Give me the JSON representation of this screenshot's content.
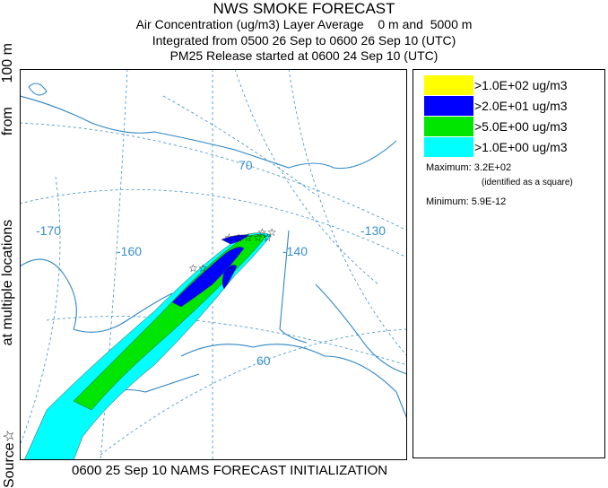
{
  "title": {
    "main": "NWS SMOKE FORECAST",
    "line2": "Air Concentration (ug/m3) Layer Average    0 m and  5000 m",
    "line3": "Integrated from 0500 26 Sep to 0600 26 Sep 10 (UTC)",
    "line4": "PM25 Release started at 0600 24 Sep 10 (UTC)"
  },
  "side_label": {
    "part1": "Source",
    "star": "☆",
    "part2": "at multiple locations",
    "part3": "from",
    "part4": "100 m"
  },
  "map": {
    "lon_labels": [
      "-170",
      "-160",
      "-140",
      "-130"
    ],
    "lat_labels": [
      "70",
      "60"
    ],
    "colors": {
      "yellow": "#ffff00",
      "blue": "#0000ff",
      "green": "#00e600",
      "cyan": "#00ffff",
      "gridline": "#3b8fc9",
      "coast": "#2f86c5"
    }
  },
  "legend": {
    "items": [
      {
        "label": ">1.0E+02 ug/m3",
        "color": "#ffff00"
      },
      {
        "label": ">2.0E+01 ug/m3",
        "color": "#0000ff"
      },
      {
        "label": ">5.0E+00 ug/m3",
        "color": "#00e600"
      },
      {
        "label": ">1.0E+00 ug/m3",
        "color": "#00ffff"
      }
    ],
    "maximum_label": "Maximum: 3.2E+02",
    "maximum_note": "(identified as a square)",
    "minimum_label": "Minimum: 5.9E-12"
  },
  "footer": "0600 25 Sep 10 NAMS FORECAST INITIALIZATION"
}
